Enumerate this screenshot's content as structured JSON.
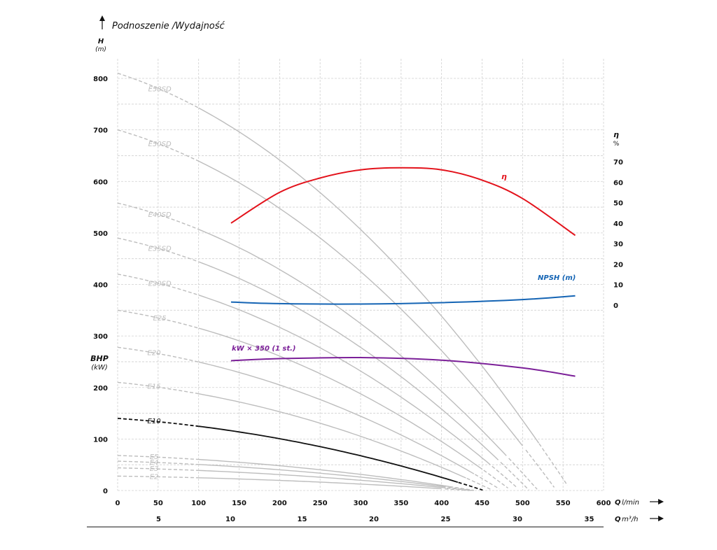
{
  "chart_data": {
    "type": "line",
    "title": "Podnoszenie /Wydajność",
    "left_axis": {
      "label": "H",
      "unit": "(m)",
      "range": [
        0,
        800
      ],
      "ticks": [
        "0",
        "100",
        "200",
        "300",
        "400",
        "500",
        "600",
        "700",
        "800"
      ]
    },
    "bhp_label": {
      "label": "BHP",
      "unit": "(kW)"
    },
    "right_axis": {
      "label": "η",
      "unit": "%",
      "range": [
        0,
        70
      ],
      "ticks": [
        "0",
        "10",
        "20",
        "30",
        "40",
        "50",
        "60",
        "70"
      ]
    },
    "x_axis": {
      "label": "Q",
      "unit": "l/min",
      "range": [
        0,
        600
      ],
      "ticks": [
        "0",
        "50",
        "100",
        "150",
        "200",
        "250",
        "300",
        "350",
        "400",
        "450",
        "500",
        "550",
        "600"
      ]
    },
    "x2_axis": {
      "label": "Q",
      "unit": "m³/h",
      "range": [
        0,
        36
      ],
      "ticks": [
        "5",
        "10",
        "15",
        "20",
        "25",
        "30",
        "35"
      ]
    },
    "head_curves": [
      {
        "name": "E58SD",
        "h0": 810
      },
      {
        "name": "E50SD",
        "h0": 700
      },
      {
        "name": "E40SD",
        "h0": 558
      },
      {
        "name": "E35SD",
        "h0": 490
      },
      {
        "name": "E30SD",
        "h0": 420
      },
      {
        "name": "E25",
        "h0": 350
      },
      {
        "name": "E20",
        "h0": 278
      },
      {
        "name": "E15",
        "h0": 210
      },
      {
        "name": "E10",
        "h0": 140,
        "highlight": true
      },
      {
        "name": "E5",
        "h0": 68
      },
      {
        "name": "E4",
        "h0": 57
      },
      {
        "name": "E3",
        "h0": 44
      },
      {
        "name": "E2",
        "h0": 28
      }
    ],
    "series": [
      {
        "name": "η",
        "axis": "right",
        "x": [
          140,
          200,
          250,
          300,
          350,
          400,
          450,
          500,
          565
        ],
        "values": [
          40,
          55,
          62,
          66,
          67,
          66,
          61,
          52,
          34
        ]
      },
      {
        "name": "NPSH (m)",
        "axis": "right",
        "x": [
          140,
          200,
          300,
          400,
          500,
          565
        ],
        "values": [
          1.5,
          0.7,
          0.5,
          1.2,
          2.7,
          4.5
        ]
      },
      {
        "name": "kW × 350 (1 st.)",
        "axis": "left",
        "x": [
          140,
          200,
          300,
          400,
          500,
          565
        ],
        "values": [
          252,
          256,
          258,
          253,
          238,
          222
        ]
      }
    ],
    "colors": {
      "eta": "#e3121b",
      "npsh": "#1464b4",
      "kw": "#7b1f98",
      "curves": "#bdbdbd",
      "e10": "#111111",
      "grid": "#d0d0d0"
    }
  }
}
